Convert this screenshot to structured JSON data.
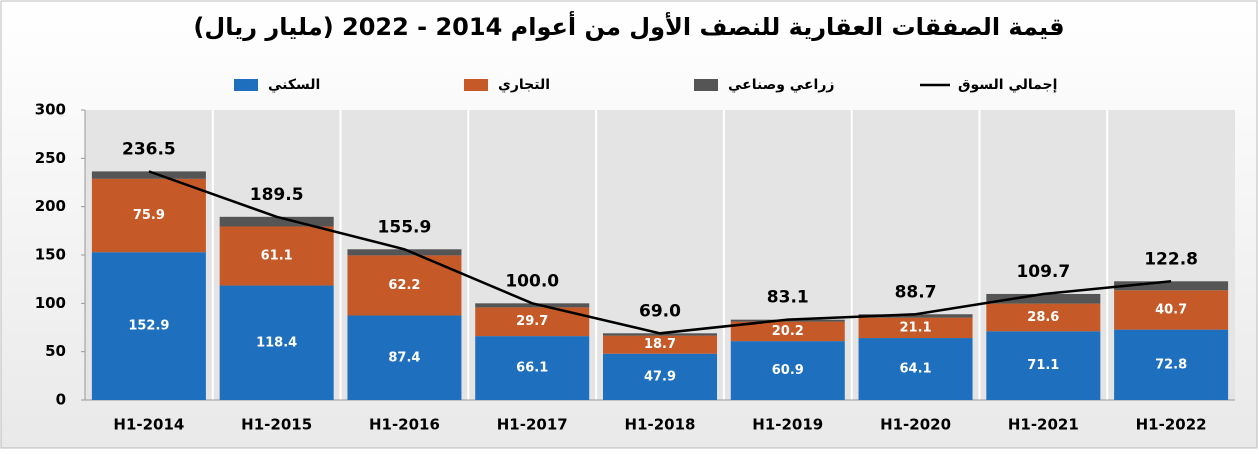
{
  "chart_data": {
    "type": "bar",
    "stacked": true,
    "title": "قيمة الصفقات العقارية للنصف الأول من أعوام 2014 - 2022 (مليار ريال)",
    "categories": [
      "H1-2014",
      "H1-2015",
      "H1-2016",
      "H1-2017",
      "H1-2018",
      "H1-2019",
      "H1-2020",
      "H1-2021",
      "H1-2022"
    ],
    "series": [
      {
        "name": "السكني",
        "color": "#1f6fbf",
        "values": [
          152.9,
          118.4,
          87.4,
          66.1,
          47.9,
          60.9,
          64.1,
          71.1,
          72.8
        ]
      },
      {
        "name": "التجاري",
        "color": "#c55a28",
        "values": [
          75.9,
          61.1,
          62.2,
          29.7,
          18.7,
          20.2,
          21.1,
          28.6,
          40.7
        ]
      },
      {
        "name": "زراعي وصناعي",
        "color": "#555555",
        "values": [
          7.7,
          10.0,
          6.3,
          4.2,
          2.4,
          2.0,
          3.5,
          10.0,
          9.3
        ]
      },
      {
        "name": "إجمالي السوق",
        "color": "#000000",
        "type": "line",
        "values": [
          236.5,
          189.5,
          155.9,
          100.0,
          69.0,
          83.1,
          88.7,
          109.7,
          122.8
        ],
        "value_labels": [
          "236.5",
          "189.5",
          "155.9",
          "100.0",
          "69.0",
          "83.1",
          "88.7",
          "109.7",
          "122.8"
        ]
      }
    ],
    "ylim": [
      0,
      300
    ],
    "yticks": [
      0,
      50,
      100,
      150,
      200,
      250,
      300
    ]
  }
}
